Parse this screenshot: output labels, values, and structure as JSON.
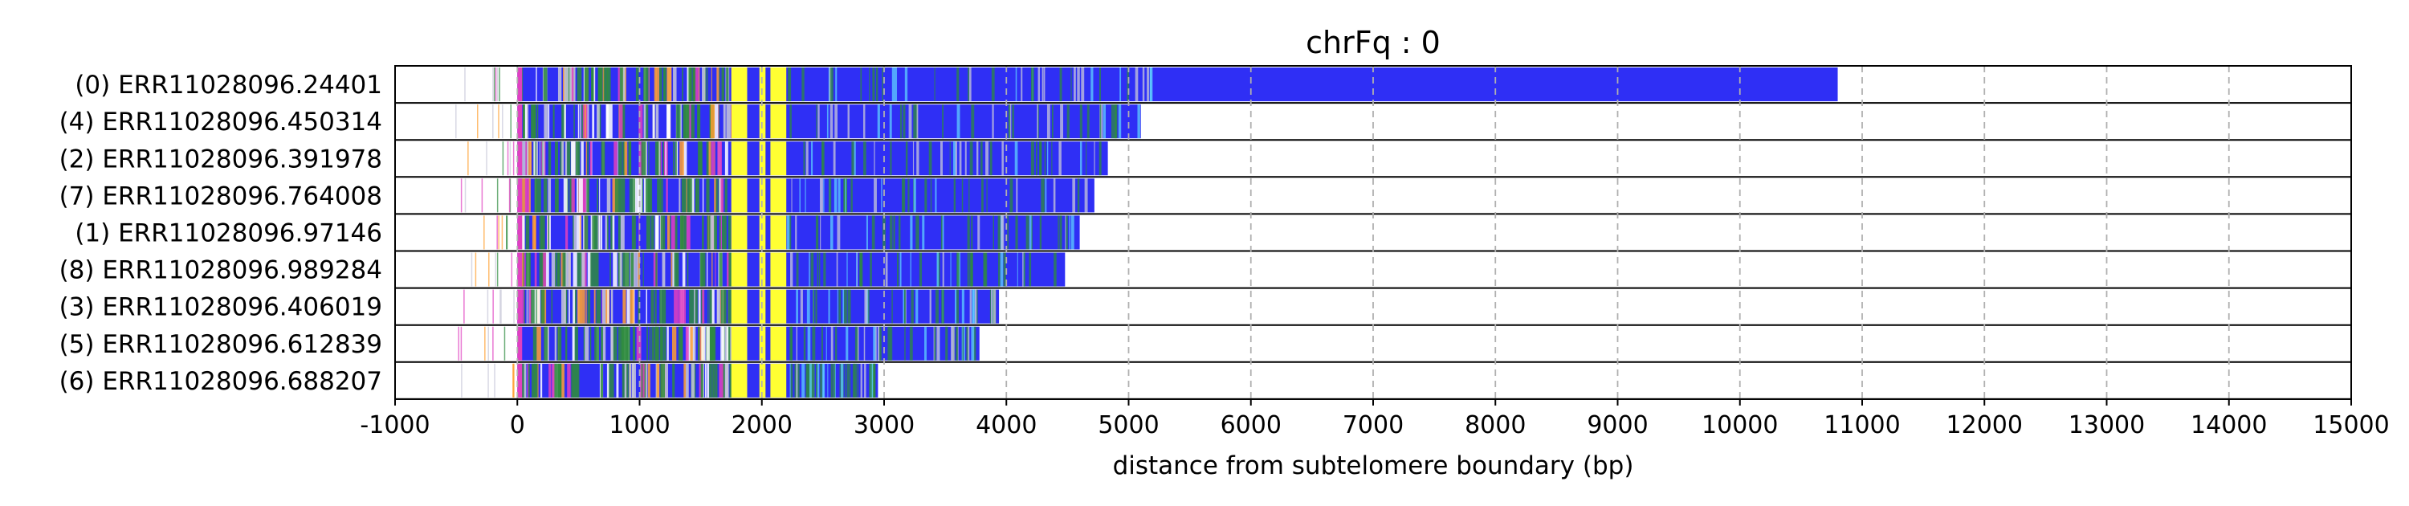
{
  "chart_data": {
    "type": "bar",
    "title": "chrFq : 0",
    "xlabel": "distance from subtelomere boundary (bp)",
    "ylabel": "",
    "xlim": [
      -1000,
      15000
    ],
    "xticks": [
      -1000,
      0,
      1000,
      2000,
      3000,
      4000,
      5000,
      6000,
      7000,
      8000,
      9000,
      10000,
      11000,
      12000,
      13000,
      14000,
      15000
    ],
    "grid": "vertical dashed",
    "bar_start": 0,
    "series": [
      {
        "name": "(0) ERR11028096.24401",
        "end": 10800
      },
      {
        "name": "(4) ERR11028096.450314",
        "end": 5100
      },
      {
        "name": "(2) ERR11028096.391978",
        "end": 4830
      },
      {
        "name": "(7) ERR11028096.764008",
        "end": 4720
      },
      {
        "name": "(1) ERR11028096.97146",
        "end": 4600
      },
      {
        "name": "(8) ERR11028096.989284",
        "end": 4480
      },
      {
        "name": "(3) ERR11028096.406019",
        "end": 3940
      },
      {
        "name": "(5) ERR11028096.612839",
        "end": 3780
      },
      {
        "name": "(6) ERR11028096.688207",
        "end": 2950
      }
    ],
    "colors": {
      "main": "#2f2ff5",
      "yellow": "#ffff33",
      "green": "#2e8b3e",
      "orange": "#ffa030",
      "magenta": "#e040c0",
      "gray": "#c8c8d8",
      "grid": "#b0b0b0"
    }
  }
}
